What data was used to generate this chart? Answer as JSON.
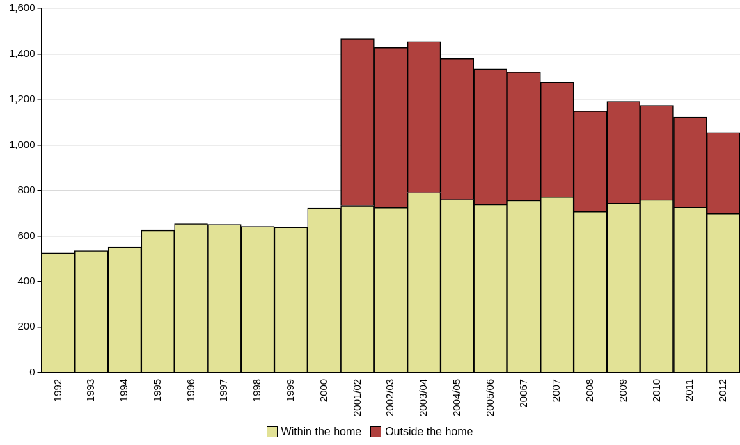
{
  "chart_data": {
    "type": "bar",
    "stacked": true,
    "categories": [
      "1992",
      "1993",
      "1994",
      "1995",
      "1996",
      "1997",
      "1998",
      "1999",
      "2000",
      "2001/02",
      "2002/03",
      "2003/04",
      "2004/05",
      "2005/06",
      "20067",
      "2007",
      "2008",
      "2009",
      "2010",
      "2011",
      "2012"
    ],
    "series": [
      {
        "name": "Within the home",
        "color": "#e2e296",
        "values": [
          525,
          535,
          552,
          625,
          654,
          651,
          642,
          638,
          723,
          734,
          725,
          791,
          761,
          738,
          757,
          771,
          707,
          744,
          760,
          727,
          698
        ]
      },
      {
        "name": "Outside the home",
        "color": "#b0413e",
        "values": [
          null,
          null,
          null,
          null,
          null,
          null,
          null,
          null,
          null,
          733,
          703,
          663,
          618,
          597,
          563,
          504,
          442,
          448,
          414,
          396,
          356
        ]
      }
    ],
    "ylim": [
      0,
      1600
    ],
    "yticks": [
      0,
      200,
      400,
      600,
      800,
      {
        "value": 1000,
        "label": "1,000"
      },
      {
        "value": 1200,
        "label": "1,200"
      },
      {
        "value": 1400,
        "label": "1,400"
      },
      {
        "value": 1600,
        "label": "1,600"
      }
    ],
    "grid": "y",
    "legend": "bottom"
  }
}
